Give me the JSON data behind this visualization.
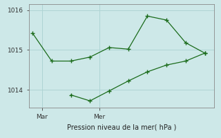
{
  "line1_x": [
    0,
    1,
    2,
    3,
    4,
    5,
    6,
    7,
    8,
    9
  ],
  "line1_y": [
    1015.42,
    1014.72,
    1014.72,
    1014.82,
    1015.06,
    1015.02,
    1015.85,
    1015.75,
    1015.18,
    1014.92
  ],
  "line2_x": [
    2,
    3,
    4,
    5,
    6,
    7,
    8,
    9
  ],
  "line2_y": [
    1013.87,
    1013.72,
    1013.97,
    1014.22,
    1014.45,
    1014.62,
    1014.72,
    1014.92
  ],
  "xtick_positions": [
    0.5,
    3.5
  ],
  "xtick_labels": [
    "Mar",
    "Mer"
  ],
  "ytick_positions": [
    1014,
    1015,
    1016
  ],
  "ytick_labels": [
    "1014",
    "1015",
    "1016"
  ],
  "ylim": [
    1013.55,
    1016.15
  ],
  "xlim": [
    -0.2,
    9.5
  ],
  "xlabel": "Pression niveau de la mer( hPa )",
  "line_color": "#1a6b1a",
  "bg_color": "#cde8e8",
  "grid_color": "#afd4d4",
  "marker": "+"
}
